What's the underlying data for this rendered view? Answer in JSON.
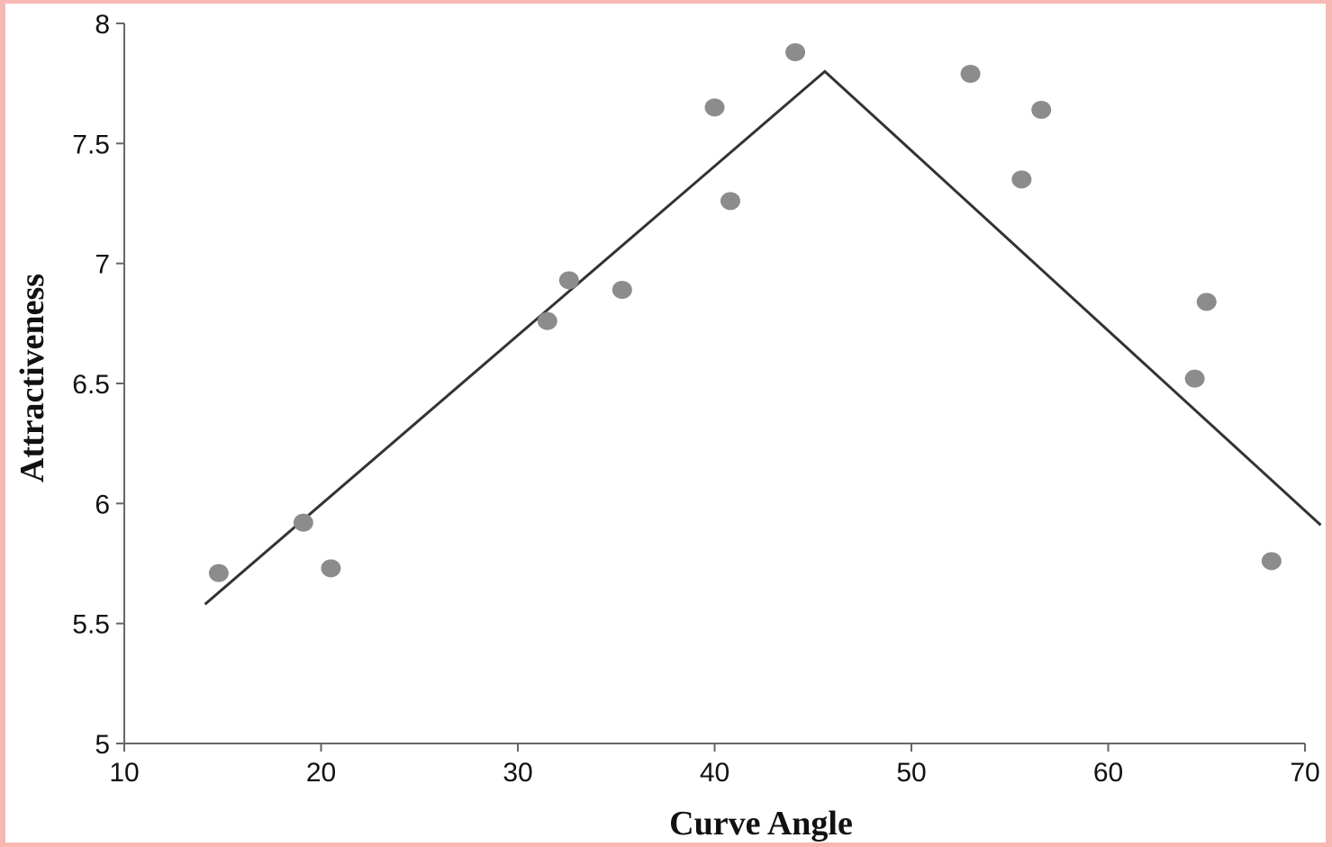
{
  "chart_data": {
    "type": "scatter",
    "title": "",
    "xlabel": "Curve Angle",
    "ylabel": "Attractiveness",
    "xlim": [
      10,
      70
    ],
    "ylim": [
      5,
      8
    ],
    "x_ticks": [
      "10",
      "20",
      "30",
      "40",
      "50",
      "60",
      "70"
    ],
    "y_ticks": [
      "5",
      "5.5",
      "6",
      "6.5",
      "7",
      "7.5",
      "8"
    ],
    "grid": false,
    "legend": "none",
    "colors": {
      "points": "#8c8c8c",
      "line": "#333333",
      "axes": "#666666",
      "background": "#ffffff",
      "border": "#f7b7b3"
    },
    "series": [
      {
        "type": "scatter",
        "points": [
          {
            "x": 14.8,
            "y": 5.71
          },
          {
            "x": 19.1,
            "y": 5.92
          },
          {
            "x": 20.5,
            "y": 5.73
          },
          {
            "x": 31.5,
            "y": 6.76
          },
          {
            "x": 32.6,
            "y": 6.93
          },
          {
            "x": 35.3,
            "y": 6.89
          },
          {
            "x": 40.0,
            "y": 7.65
          },
          {
            "x": 40.8,
            "y": 7.26
          },
          {
            "x": 44.1,
            "y": 7.88
          },
          {
            "x": 53.0,
            "y": 7.79
          },
          {
            "x": 55.6,
            "y": 7.35
          },
          {
            "x": 56.6,
            "y": 7.64
          },
          {
            "x": 64.4,
            "y": 6.52
          },
          {
            "x": 65.0,
            "y": 6.84
          },
          {
            "x": 68.3,
            "y": 5.76
          }
        ]
      },
      {
        "type": "line",
        "points": [
          {
            "x": 14.1,
            "y": 5.58
          },
          {
            "x": 45.6,
            "y": 7.8
          },
          {
            "x": 70.8,
            "y": 5.91
          }
        ]
      }
    ]
  }
}
